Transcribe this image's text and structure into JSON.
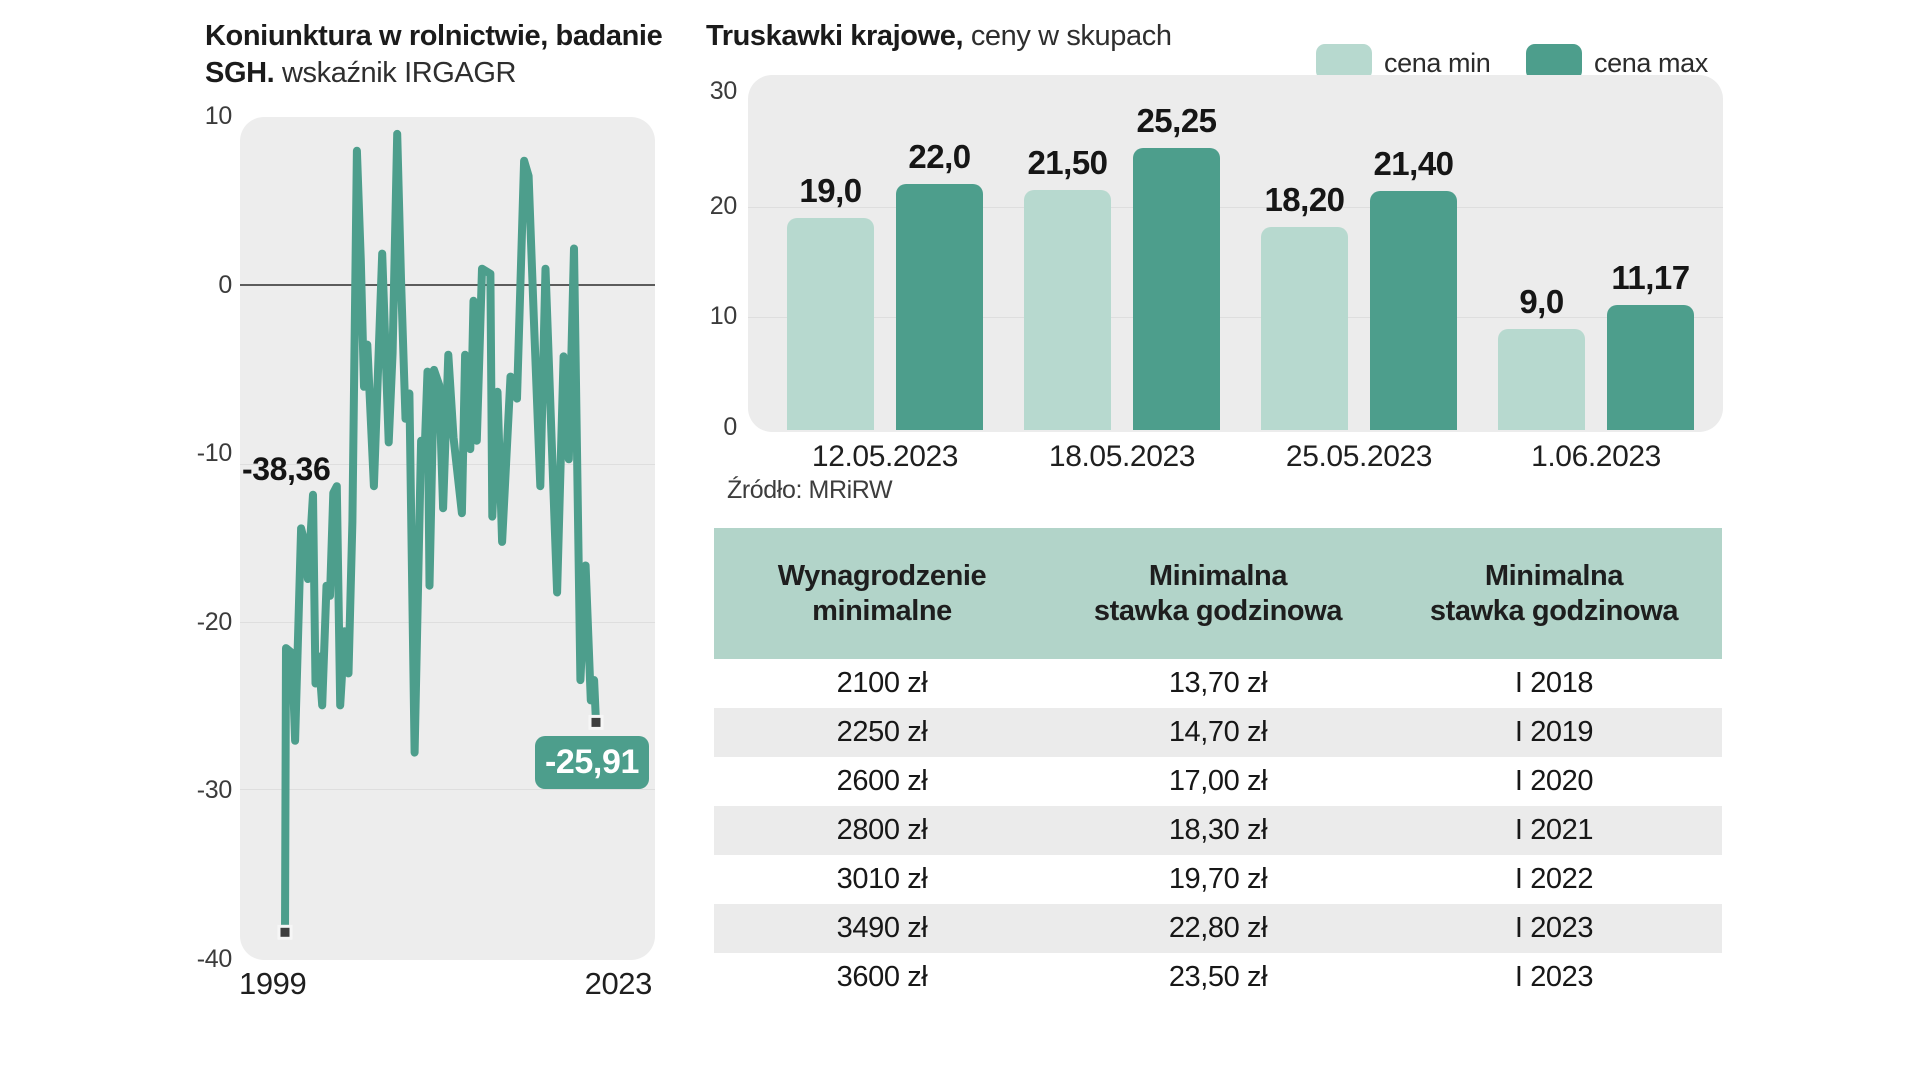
{
  "line_chart": {
    "title_line1": "Koniunktura w rolnictwie, badanie",
    "title_line2_bold": "SGH.",
    "title_line2_regular": " wskaźnik IRGAGR",
    "start_annotation": "-38,36",
    "end_annotation": "-25,91",
    "x_tick_start": "1999",
    "x_tick_end": "2023",
    "y_ticks": [
      "10",
      "0",
      "-10",
      "-20",
      "-30",
      "-40"
    ],
    "line_color": "#4d9e8c",
    "marker_color": "#3f3f3f"
  },
  "bar_chart": {
    "title_bold": "Truskawki krajowe,",
    "title_regular": " ceny w skupach",
    "legend": [
      {
        "label": "cena min",
        "color": "#b7d9cf"
      },
      {
        "label": "cena max",
        "color": "#4d9e8c"
      }
    ],
    "y_ticks": [
      "30",
      "20",
      "10",
      "0"
    ],
    "source": "Źródło: MRiRW"
  },
  "chart_data": [
    {
      "type": "line",
      "title": "Koniunktura w rolnictwie, badanie SGH. wskaźnik IRGAGR",
      "xlabel": "",
      "ylabel": "",
      "x_range": [
        1999,
        2023
      ],
      "ylim": [
        -40,
        10
      ],
      "grid": true,
      "annotations": {
        "first_value_label": "-38,36",
        "last_value_label": "-25,91"
      },
      "series": [
        {
          "name": "IRGAGR",
          "points": [
            [
              1999,
              -38.36
            ],
            [
              1999.08,
              -21.5
            ],
            [
              1999.55,
              -21.8
            ],
            [
              1999.78,
              -27
            ],
            [
              2000.24,
              -14.4
            ],
            [
              2000.5,
              -15.2
            ],
            [
              2000.77,
              -17.4
            ],
            [
              2001.16,
              -12.4
            ],
            [
              2001.35,
              -23.6
            ],
            [
              2001.6,
              -22
            ],
            [
              2001.87,
              -24.9
            ],
            [
              2002.2,
              -17.8
            ],
            [
              2002.47,
              -18.4
            ],
            [
              2002.73,
              -12.3
            ],
            [
              2003.0,
              -11.9
            ],
            [
              2003.26,
              -24.9
            ],
            [
              2003.6,
              -20.5
            ],
            [
              2003.9,
              -23
            ],
            [
              2004.2,
              -14
            ],
            [
              2004.55,
              8
            ],
            [
              2004.85,
              1.5
            ],
            [
              2005.1,
              -6
            ],
            [
              2005.35,
              -3.5
            ],
            [
              2005.86,
              -11.9
            ],
            [
              2006.5,
              1.9
            ],
            [
              2007.0,
              -9.3
            ],
            [
              2007.3,
              -4
            ],
            [
              2007.66,
              9
            ],
            [
              2007.95,
              0.4
            ],
            [
              2008.3,
              -7.9
            ],
            [
              2008.6,
              -6.4
            ],
            [
              2009.0,
              -27.7
            ],
            [
              2009.5,
              -9.2
            ],
            [
              2009.75,
              -10.4
            ],
            [
              2010.0,
              -5.1
            ],
            [
              2010.15,
              -17.8
            ],
            [
              2010.5,
              -5
            ],
            [
              2010.9,
              -5.9
            ],
            [
              2011.2,
              -13.2
            ],
            [
              2011.6,
              -4.1
            ],
            [
              2012.0,
              -9
            ],
            [
              2012.65,
              -13.5
            ],
            [
              2012.9,
              -4.1
            ],
            [
              2013.3,
              -9.7
            ],
            [
              2013.55,
              -0.9
            ],
            [
              2013.8,
              -9.2
            ],
            [
              2014.2,
              1
            ],
            [
              2014.85,
              0.7
            ],
            [
              2015.0,
              -13.7
            ],
            [
              2015.4,
              -6.3
            ],
            [
              2015.75,
              -15.2
            ],
            [
              2016.4,
              -5.4
            ],
            [
              2016.9,
              -6.7
            ],
            [
              2017.45,
              7.4
            ],
            [
              2017.8,
              6.5
            ],
            [
              2018.2,
              -1.9
            ],
            [
              2018.7,
              -11.9
            ],
            [
              2019.1,
              1
            ],
            [
              2020.0,
              -18.2
            ],
            [
              2020.5,
              -4.2
            ],
            [
              2020.9,
              -10.3
            ],
            [
              2021.3,
              2.2
            ],
            [
              2021.8,
              -23.4
            ],
            [
              2022.2,
              -16.6
            ],
            [
              2022.6,
              -24.6
            ],
            [
              2022.85,
              -23.4
            ],
            [
              2023.0,
              -25.91
            ]
          ]
        }
      ]
    },
    {
      "type": "bar",
      "title": "Truskawki krajowe, ceny w skupach",
      "categories": [
        "12.05.2023",
        "18.05.2023",
        "25.05.2023",
        "1.06.2023"
      ],
      "series": [
        {
          "name": "cena min",
          "color": "#b7d9cf",
          "values": [
            19.0,
            21.5,
            18.2,
            9.0
          ],
          "labels": [
            "19,0",
            "21,50",
            "18,20",
            "9,0"
          ]
        },
        {
          "name": "cena max",
          "color": "#4d9e8c",
          "values": [
            22.0,
            25.25,
            21.4,
            11.17
          ],
          "labels": [
            "22,0",
            "25,25",
            "21,40",
            "11,17"
          ]
        }
      ],
      "ylim": [
        0,
        30
      ],
      "grid": true,
      "legend_position": "top-right",
      "source": "Źródło: MRiRW"
    }
  ],
  "table": {
    "headers": [
      [
        "Wynagrodzenie",
        "minimalne"
      ],
      [
        "Minimalna",
        "stawka godzinowa"
      ],
      [
        "Minimalna",
        "stawka godzinowa"
      ]
    ],
    "rows": [
      [
        "2100 zł",
        "13,70 zł",
        "I 2018"
      ],
      [
        "2250 zł",
        "14,70 zł",
        "I 2019"
      ],
      [
        "2600 zł",
        "17,00 zł",
        "I 2020"
      ],
      [
        "2800 zł",
        "18,30 zł",
        "I 2021"
      ],
      [
        "3010 zł",
        "19,70 zł",
        "I 2022"
      ],
      [
        "3490 zł",
        "22,80 zł",
        "I 2023"
      ],
      [
        "3600 zł",
        "23,50 zł",
        "I 2023"
      ]
    ]
  }
}
